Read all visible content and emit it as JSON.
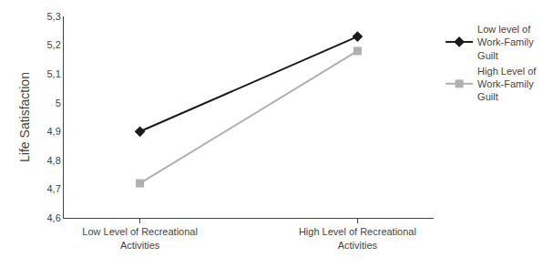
{
  "chart_data": {
    "type": "line",
    "categories": [
      "Low Level of Recreational\nActivities",
      "High Level of Recreational\nActivities"
    ],
    "series": [
      {
        "name": "Low level of\nWork-Family\nGuilt",
        "color": "#1a1a1a",
        "marker": "diamond",
        "line_style": "solid",
        "values": [
          4.9,
          5.23
        ]
      },
      {
        "name": "High Level of\nWork-Family\nGuilt",
        "color": "#b0b0b0",
        "marker": "square",
        "line_style": "solid",
        "values": [
          4.72,
          5.18
        ]
      }
    ],
    "y_label": "Life Satisfaction",
    "ylim": [
      4.6,
      5.3
    ],
    "yticks": [
      {
        "value": 4.6,
        "label": "4,6"
      },
      {
        "value": 4.7,
        "label": "4,7"
      },
      {
        "value": 4.8,
        "label": "4,8"
      },
      {
        "value": 4.9,
        "label": "4,9"
      },
      5,
      {
        "value": 5.1,
        "label": "5,1"
      },
      {
        "value": 5.2,
        "label": "5,2"
      },
      {
        "value": 5.3,
        "label": "5,3"
      }
    ],
    "grid": false,
    "legend": "right"
  }
}
